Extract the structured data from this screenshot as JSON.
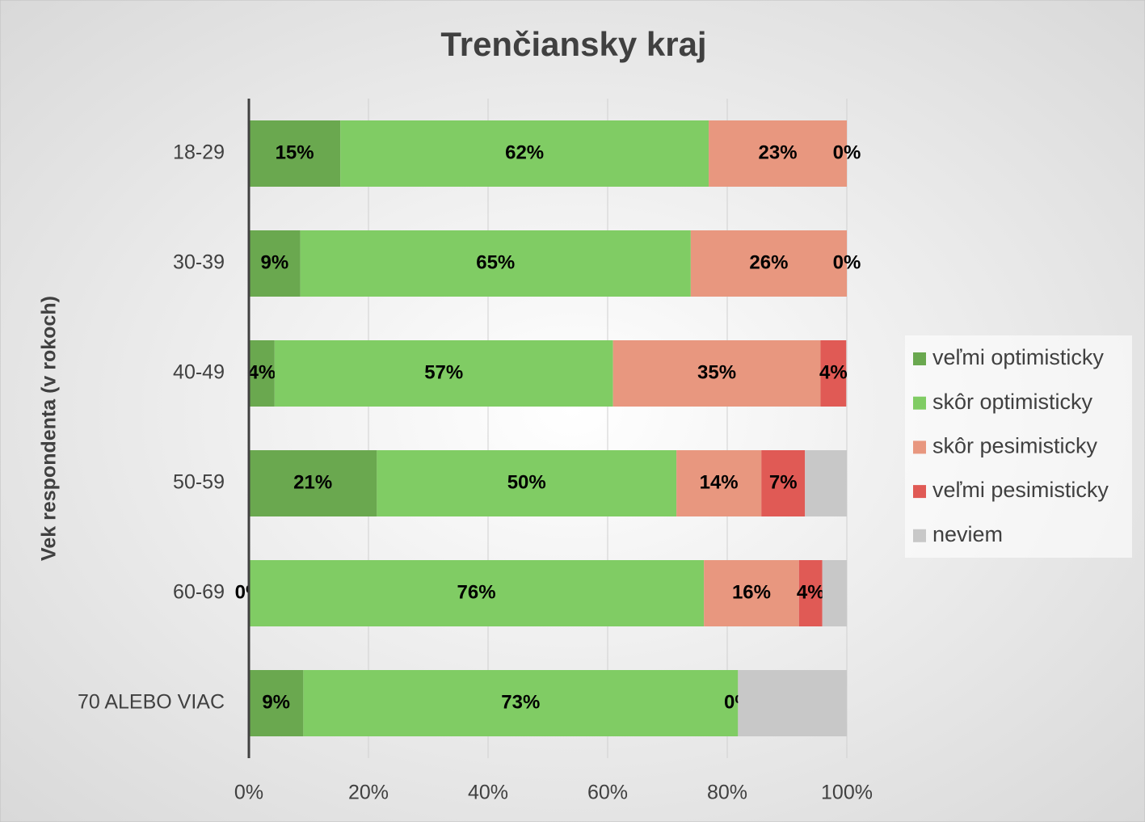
{
  "chart_data": {
    "type": "stacked_bar_horizontal",
    "title": "Trenčiansky kraj",
    "y_label": "Vek  respondenta  (v  rokoch)",
    "categories": [
      "18-29",
      "30-39",
      "40-49",
      "50-59",
      "60-69",
      "70 ALEBO VIAC"
    ],
    "series": [
      {
        "name": "veľmi optimisticky",
        "color": "#6aa84f",
        "values": [
          15.3,
          8.6,
          4.3,
          21.4,
          0,
          9.1
        ],
        "value_labels": [
          "15%",
          "9%",
          "4%",
          "21%",
          "0%",
          "9%"
        ]
      },
      {
        "name": "skôr optimisticky",
        "color": "#80cc64",
        "values": [
          61.6,
          65.3,
          56.6,
          50.1,
          76.1,
          72.7
        ],
        "value_labels": [
          "62%",
          "65%",
          "57%",
          "50%",
          "76%",
          "73%"
        ]
      },
      {
        "name": "skôr pesimisticky",
        "color": "#e8977f",
        "values": [
          23.1,
          26.1,
          34.7,
          14.2,
          15.9,
          0
        ],
        "value_labels": [
          "23%",
          "26%",
          "35%",
          "14%",
          "16%",
          "0%"
        ]
      },
      {
        "name": "veľmi pesimisticky",
        "color": "#e05a55",
        "values": [
          0,
          0,
          4.3,
          7.3,
          3.9,
          0
        ],
        "value_labels": [
          "0%",
          "0%",
          "4%",
          "7%",
          "4%",
          null
        ]
      },
      {
        "name": "neviem",
        "color": "#c8c8c8",
        "values": [
          0,
          0,
          0,
          7.0,
          4.1,
          18.2
        ],
        "value_labels": [
          null,
          null,
          null,
          null,
          null,
          null
        ]
      }
    ],
    "xlim": [
      0,
      100
    ],
    "xticks": [
      {
        "value": 0,
        "label": "0%"
      },
      {
        "value": 20,
        "label": "20%"
      },
      {
        "value": 40,
        "label": "40%"
      },
      {
        "value": 60,
        "label": "60%"
      },
      {
        "value": 80,
        "label": "80%"
      },
      {
        "value": 100,
        "label": "100%"
      }
    ],
    "grid": true,
    "legend": "right"
  }
}
